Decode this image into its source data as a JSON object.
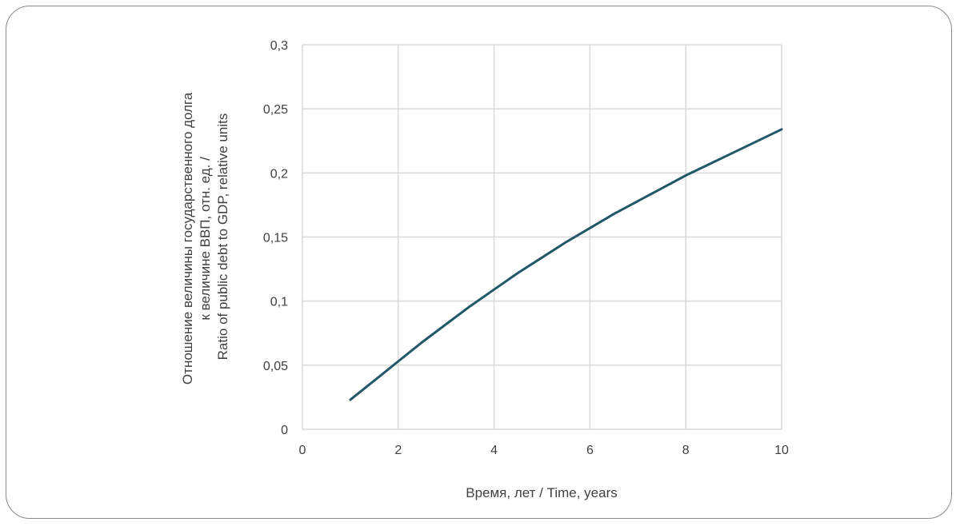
{
  "chart_data": {
    "type": "line",
    "title": "",
    "xlabel": "Время, лет / Time, years",
    "ylabel_lines": [
      "Отношение величины государственного долга",
      "к величине ВВП, отн. ед.  /",
      "Ratio of public debt to GDP, relative units"
    ],
    "xlim": [
      0,
      10
    ],
    "ylim": [
      0,
      0.3
    ],
    "x_ticks": [
      "0",
      "2",
      "4",
      "6",
      "8",
      "10"
    ],
    "x_tick_values": [
      0,
      2,
      4,
      6,
      8,
      10
    ],
    "y_ticks": [
      "0",
      "0,05",
      "0,1",
      "0,15",
      "0,2",
      "0,25",
      "0,3"
    ],
    "y_tick_values": [
      0,
      0.05,
      0.1,
      0.15,
      0.2,
      0.25,
      0.3
    ],
    "grid": true,
    "legend": "none",
    "series": [
      {
        "color": "#215868",
        "x": [
          1,
          1.5,
          2,
          2.5,
          3,
          3.5,
          4,
          4.5,
          5,
          5.5,
          6,
          6.5,
          7,
          7.5,
          8,
          8.5,
          9,
          9.5,
          10
        ],
        "y": [
          0.023,
          0.038,
          0.053,
          0.068,
          0.082,
          0.096,
          0.109,
          0.122,
          0.134,
          0.146,
          0.157,
          0.168,
          0.178,
          0.188,
          0.198,
          0.207,
          0.216,
          0.225,
          0.234
        ]
      }
    ]
  }
}
